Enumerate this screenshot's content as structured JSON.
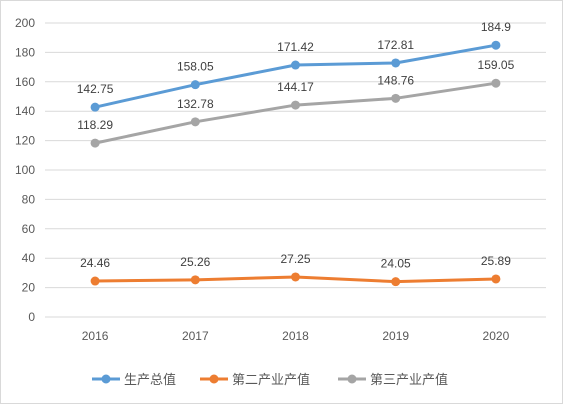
{
  "chart_data": {
    "type": "line",
    "title": "",
    "xlabel": "",
    "ylabel": "",
    "categories": [
      "2016",
      "2017",
      "2018",
      "2019",
      "2020"
    ],
    "ylim": [
      0,
      200
    ],
    "yticks": [
      0,
      20,
      40,
      60,
      80,
      100,
      120,
      140,
      160,
      180,
      200
    ],
    "grid": "horizontal",
    "legend_position": "bottom",
    "series": [
      {
        "name": "生产总值",
        "values": [
          142.75,
          158.05,
          171.42,
          172.81,
          184.9
        ],
        "color": "#5b9bd5"
      },
      {
        "name": "第二产业产值",
        "values": [
          24.46,
          25.26,
          27.25,
          24.05,
          25.89
        ],
        "color": "#ed7d31"
      },
      {
        "name": "第三产业产值",
        "values": [
          118.29,
          132.78,
          144.17,
          148.76,
          159.05
        ],
        "color": "#a5a5a5"
      }
    ]
  }
}
